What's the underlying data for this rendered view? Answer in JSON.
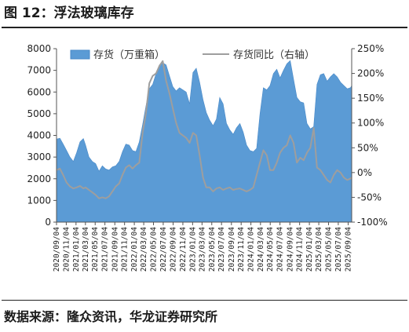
{
  "figure": {
    "title": "图 12：浮法玻璃库存",
    "source": "数据来源：隆众资讯，华龙证券研究所"
  },
  "chart_data": {
    "type": "area+line",
    "series": [
      {
        "name": "存货（万重箱）",
        "type": "area",
        "axis": "left",
        "color": "#5b9bd5",
        "points": [
          [
            "2020-09-04",
            3830
          ],
          [
            "2020-09-25",
            3870
          ],
          [
            "2020-10-16",
            3600
          ],
          [
            "2020-11-06",
            3300
          ],
          [
            "2020-11-27",
            3000
          ],
          [
            "2020-12-18",
            2800
          ],
          [
            "2021-01-08",
            3200
          ],
          [
            "2021-01-29",
            3700
          ],
          [
            "2021-02-19",
            3850
          ],
          [
            "2021-03-05",
            3550
          ],
          [
            "2021-03-26",
            3000
          ],
          [
            "2021-04-16",
            2800
          ],
          [
            "2021-05-07",
            2700
          ],
          [
            "2021-05-28",
            2350
          ],
          [
            "2021-06-18",
            2600
          ],
          [
            "2021-07-09",
            2450
          ],
          [
            "2021-07-30",
            2400
          ],
          [
            "2021-08-20",
            2550
          ],
          [
            "2021-09-10",
            2600
          ],
          [
            "2021-10-01",
            2800
          ],
          [
            "2021-10-22",
            3250
          ],
          [
            "2021-11-12",
            3600
          ],
          [
            "2021-12-03",
            3550
          ],
          [
            "2021-12-24",
            3300
          ],
          [
            "2022-01-14",
            3250
          ],
          [
            "2022-02-04",
            3700
          ],
          [
            "2022-02-25",
            4500
          ],
          [
            "2022-03-18",
            5350
          ],
          [
            "2022-04-08",
            6150
          ],
          [
            "2022-04-29",
            6350
          ],
          [
            "2022-05-20",
            6850
          ],
          [
            "2022-06-10",
            7250
          ],
          [
            "2022-07-01",
            7350
          ],
          [
            "2022-07-22",
            7250
          ],
          [
            "2022-08-12",
            6750
          ],
          [
            "2022-09-02",
            6250
          ],
          [
            "2022-09-23",
            6050
          ],
          [
            "2022-10-14",
            6200
          ],
          [
            "2022-11-04",
            6100
          ],
          [
            "2022-11-25",
            6000
          ],
          [
            "2022-12-16",
            5450
          ],
          [
            "2023-01-06",
            6900
          ],
          [
            "2023-01-27",
            7100
          ],
          [
            "2023-02-17",
            6450
          ],
          [
            "2023-03-10",
            5650
          ],
          [
            "2023-03-31",
            5050
          ],
          [
            "2023-04-21",
            4700
          ],
          [
            "2023-05-12",
            4450
          ],
          [
            "2023-06-02",
            4750
          ],
          [
            "2023-06-23",
            5750
          ],
          [
            "2023-07-14",
            5450
          ],
          [
            "2023-08-04",
            4550
          ],
          [
            "2023-08-25",
            4250
          ],
          [
            "2023-09-15",
            4050
          ],
          [
            "2023-10-06",
            4350
          ],
          [
            "2023-10-27",
            4550
          ],
          [
            "2023-11-17",
            4150
          ],
          [
            "2023-12-08",
            3550
          ],
          [
            "2023-12-29",
            3300
          ],
          [
            "2024-01-19",
            3250
          ],
          [
            "2024-02-09",
            3400
          ],
          [
            "2024-03-01",
            5000
          ],
          [
            "2024-03-22",
            6200
          ],
          [
            "2024-04-12",
            6100
          ],
          [
            "2024-05-03",
            6300
          ],
          [
            "2024-05-24",
            6850
          ],
          [
            "2024-06-14",
            7050
          ],
          [
            "2024-07-05",
            6650
          ],
          [
            "2024-07-26",
            7000
          ],
          [
            "2024-08-16",
            7300
          ],
          [
            "2024-09-06",
            7450
          ],
          [
            "2024-09-27",
            6600
          ],
          [
            "2024-10-18",
            5750
          ],
          [
            "2024-11-08",
            5550
          ],
          [
            "2024-11-29",
            5500
          ],
          [
            "2024-12-20",
            4550
          ],
          [
            "2025-01-10",
            4300
          ],
          [
            "2025-01-31",
            4400
          ],
          [
            "2025-02-21",
            6350
          ],
          [
            "2025-03-14",
            6800
          ],
          [
            "2025-04-04",
            6850
          ],
          [
            "2025-04-25",
            6500
          ],
          [
            "2025-05-16",
            6700
          ],
          [
            "2025-06-06",
            6850
          ],
          [
            "2025-06-27",
            6700
          ],
          [
            "2025-07-18",
            6450
          ],
          [
            "2025-08-08",
            6300
          ],
          [
            "2025-08-29",
            6150
          ],
          [
            "2025-09-19",
            6200
          ],
          [
            "2025-09-26",
            6300
          ]
        ]
      },
      {
        "name": "存货同比（右轴）",
        "type": "line",
        "axis": "right",
        "color": "#9e9e9e",
        "points": [
          [
            "2020-09-04",
            5
          ],
          [
            "2020-09-25",
            8
          ],
          [
            "2020-10-16",
            -5
          ],
          [
            "2020-11-06",
            -20
          ],
          [
            "2020-11-27",
            -28
          ],
          [
            "2020-12-18",
            -32
          ],
          [
            "2021-01-08",
            -30
          ],
          [
            "2021-01-29",
            -27
          ],
          [
            "2021-02-19",
            -32
          ],
          [
            "2021-03-05",
            -30
          ],
          [
            "2021-03-26",
            -35
          ],
          [
            "2021-04-16",
            -40
          ],
          [
            "2021-05-07",
            -45
          ],
          [
            "2021-05-28",
            -52
          ],
          [
            "2021-06-18",
            -50
          ],
          [
            "2021-07-09",
            -52
          ],
          [
            "2021-07-30",
            -48
          ],
          [
            "2021-08-20",
            -38
          ],
          [
            "2021-09-10",
            -28
          ],
          [
            "2021-10-01",
            -22
          ],
          [
            "2021-10-22",
            -5
          ],
          [
            "2021-11-12",
            10
          ],
          [
            "2021-12-03",
            15
          ],
          [
            "2021-12-24",
            8
          ],
          [
            "2022-01-14",
            15
          ],
          [
            "2022-02-04",
            20
          ],
          [
            "2022-02-25",
            80
          ],
          [
            "2022-03-18",
            120
          ],
          [
            "2022-04-08",
            180
          ],
          [
            "2022-04-29",
            195
          ],
          [
            "2022-05-20",
            200
          ],
          [
            "2022-06-10",
            215
          ],
          [
            "2022-07-01",
            225
          ],
          [
            "2022-07-22",
            185
          ],
          [
            "2022-08-12",
            160
          ],
          [
            "2022-09-02",
            130
          ],
          [
            "2022-09-23",
            100
          ],
          [
            "2022-10-14",
            80
          ],
          [
            "2022-11-04",
            75
          ],
          [
            "2022-11-25",
            70
          ],
          [
            "2022-12-16",
            60
          ],
          [
            "2023-01-06",
            80
          ],
          [
            "2023-01-27",
            75
          ],
          [
            "2023-02-17",
            35
          ],
          [
            "2023-03-10",
            -10
          ],
          [
            "2023-03-31",
            -30
          ],
          [
            "2023-04-21",
            -30
          ],
          [
            "2023-05-12",
            -38
          ],
          [
            "2023-06-02",
            -32
          ],
          [
            "2023-06-23",
            -30
          ],
          [
            "2023-07-14",
            -35
          ],
          [
            "2023-08-04",
            -32
          ],
          [
            "2023-08-25",
            -30
          ],
          [
            "2023-09-15",
            -35
          ],
          [
            "2023-10-06",
            -33
          ],
          [
            "2023-10-27",
            -32
          ],
          [
            "2023-11-17",
            -35
          ],
          [
            "2023-12-08",
            -38
          ],
          [
            "2023-12-29",
            -35
          ],
          [
            "2024-01-19",
            -30
          ],
          [
            "2024-02-09",
            -5
          ],
          [
            "2024-03-01",
            20
          ],
          [
            "2024-03-22",
            45
          ],
          [
            "2024-04-12",
            35
          ],
          [
            "2024-05-03",
            5
          ],
          [
            "2024-05-24",
            5
          ],
          [
            "2024-06-14",
            20
          ],
          [
            "2024-07-05",
            40
          ],
          [
            "2024-07-26",
            50
          ],
          [
            "2024-08-16",
            55
          ],
          [
            "2024-09-06",
            75
          ],
          [
            "2024-09-27",
            60
          ],
          [
            "2024-10-18",
            20
          ],
          [
            "2024-11-08",
            30
          ],
          [
            "2024-11-29",
            25
          ],
          [
            "2024-12-20",
            40
          ],
          [
            "2025-01-10",
            50
          ],
          [
            "2025-01-31",
            90
          ],
          [
            "2025-02-21",
            10
          ],
          [
            "2025-03-14",
            5
          ],
          [
            "2025-04-04",
            -5
          ],
          [
            "2025-04-25",
            -15
          ],
          [
            "2025-05-16",
            -20
          ],
          [
            "2025-06-06",
            -5
          ],
          [
            "2025-06-27",
            5
          ],
          [
            "2025-07-18",
            0
          ],
          [
            "2025-08-08",
            -10
          ],
          [
            "2025-08-29",
            -15
          ],
          [
            "2025-09-19",
            -12
          ],
          [
            "2025-09-26",
            -10
          ]
        ]
      }
    ],
    "y_left": {
      "min": 0,
      "max": 8000,
      "ticks": [
        "0",
        "1000",
        "2000",
        "3000",
        "4000",
        "5000",
        "6000",
        "7000",
        "8000"
      ]
    },
    "y_right": {
      "min": -100,
      "max": 250,
      "ticks": [
        "-100%",
        "-50%",
        "0%",
        "50%",
        "100%",
        "150%",
        "200%",
        "250%"
      ]
    },
    "x_ticks": [
      "2020/09/04",
      "2020/11/04",
      "2021/01/04",
      "2021/03/04",
      "2021/05/04",
      "2021/07/04",
      "2021/09/04",
      "2021/11/04",
      "2022/01/04",
      "2022/03/04",
      "2022/05/04",
      "2022/07/04",
      "2022/09/04",
      "2022/11/04",
      "2023/01/04",
      "2023/03/04",
      "2023/05/04",
      "2023/07/04",
      "2023/09/04",
      "2023/11/04",
      "2024/01/04",
      "2024/03/04",
      "2024/05/04",
      "2024/07/04",
      "2024/09/04",
      "2024/11/04",
      "2025/01/04",
      "2025/03/04",
      "2025/05/04",
      "2025/07/04",
      "2025/09/04"
    ],
    "legend": {
      "position": "top"
    },
    "grid": false
  }
}
